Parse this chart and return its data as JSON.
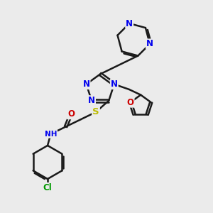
{
  "bg_color": "#ebebeb",
  "bond_color": "#1a1a1a",
  "bond_width": 1.8,
  "atom_colors": {
    "N": "#0000EE",
    "O": "#CC0000",
    "S": "#BBBB00",
    "Cl": "#009900",
    "C": "#1a1a1a",
    "H": "#555555"
  },
  "font_size": 8.5,
  "fig_size": [
    3.0,
    3.0
  ],
  "dpi": 100
}
